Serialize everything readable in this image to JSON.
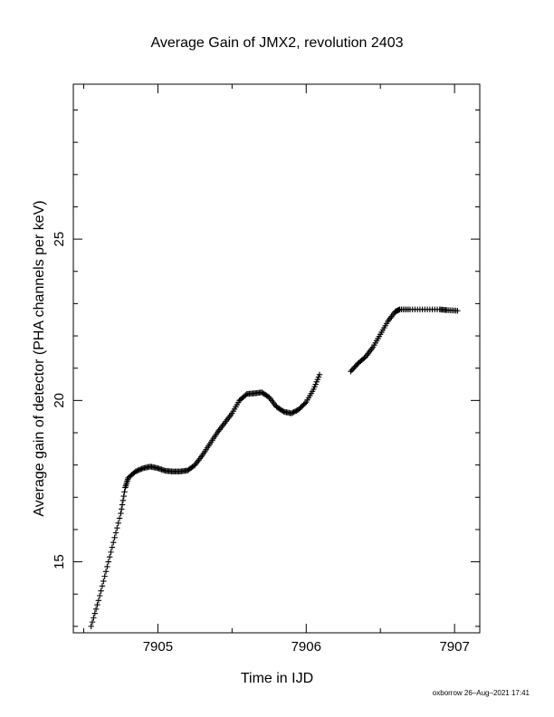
{
  "chart_data": {
    "type": "scatter",
    "title": "Average Gain of JMX2, revolution 2403",
    "xlabel": "Time in IJD",
    "ylabel": "Average gain of detector (PHA channels per keV)",
    "xlim": [
      7904.43,
      7907.17
    ],
    "ylim": [
      12.8,
      29.8
    ],
    "xticks": [
      7905,
      7906,
      7907
    ],
    "xtick_labels": [
      "7905",
      "7906",
      "7907"
    ],
    "yticks": [
      15,
      20,
      25
    ],
    "ytick_labels": [
      "15",
      "20",
      "25"
    ],
    "marker": "+",
    "color": "#000000",
    "grid": false,
    "series": [
      {
        "points": [
          [
            7904.55,
            13.0
          ],
          [
            7904.6,
            13.8
          ],
          [
            7904.65,
            14.7
          ],
          [
            7904.7,
            15.6
          ],
          [
            7904.75,
            16.5
          ],
          [
            7904.78,
            17.3
          ],
          [
            7904.8,
            17.6
          ],
          [
            7904.85,
            17.8
          ],
          [
            7904.9,
            17.9
          ],
          [
            7904.95,
            17.95
          ],
          [
            7905.0,
            17.9
          ],
          [
            7905.05,
            17.82
          ],
          [
            7905.1,
            17.8
          ],
          [
            7905.15,
            17.8
          ],
          [
            7905.2,
            17.83
          ],
          [
            7905.25,
            18.0
          ],
          [
            7905.3,
            18.3
          ],
          [
            7905.35,
            18.65
          ],
          [
            7905.4,
            19.0
          ],
          [
            7905.45,
            19.3
          ],
          [
            7905.5,
            19.6
          ],
          [
            7905.55,
            20.0
          ],
          [
            7905.6,
            20.2
          ],
          [
            7905.65,
            20.22
          ],
          [
            7905.7,
            20.25
          ],
          [
            7905.75,
            20.1
          ],
          [
            7905.8,
            19.8
          ],
          [
            7905.85,
            19.65
          ],
          [
            7905.9,
            19.6
          ],
          [
            7905.95,
            19.72
          ],
          [
            7906.0,
            19.95
          ],
          [
            7906.05,
            20.35
          ],
          [
            7906.09,
            20.8
          ]
        ]
      },
      {
        "points": [
          [
            7906.3,
            20.9
          ],
          [
            7906.35,
            21.15
          ],
          [
            7906.4,
            21.35
          ],
          [
            7906.45,
            21.65
          ],
          [
            7906.5,
            22.05
          ],
          [
            7906.55,
            22.45
          ],
          [
            7906.6,
            22.75
          ],
          [
            7906.63,
            22.82
          ],
          [
            7906.7,
            22.82
          ],
          [
            7906.8,
            22.82
          ],
          [
            7906.9,
            22.82
          ],
          [
            7906.95,
            22.8
          ],
          [
            7907.02,
            22.78
          ]
        ]
      }
    ]
  },
  "footer": {
    "credit": "oxborrow 26–Aug–2021 17:41"
  }
}
